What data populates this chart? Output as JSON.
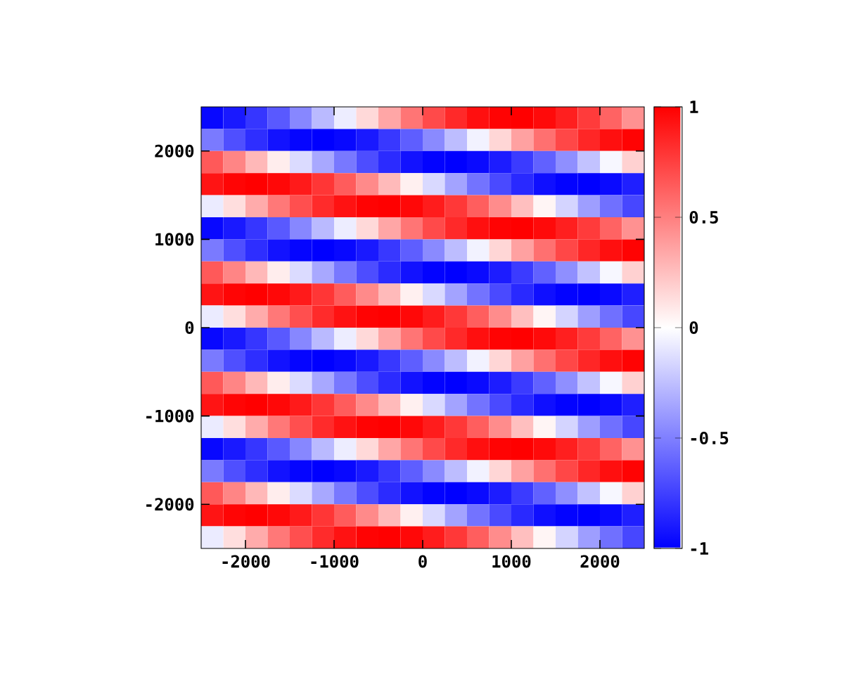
{
  "chart_data": {
    "type": "heatmap",
    "x": [
      -2375,
      -2125,
      -1875,
      -1625,
      -1375,
      -1125,
      -875,
      -625,
      -375,
      -125,
      125,
      375,
      625,
      875,
      1125,
      1375,
      1625,
      1875,
      2125,
      2375
    ],
    "y": [
      2375,
      2125,
      1875,
      1625,
      1375,
      1125,
      875,
      625,
      375,
      125,
      -125,
      -375,
      -625,
      -875,
      -1125,
      -1375,
      -1625,
      -1875,
      -2125,
      -2375
    ],
    "cells": [
      [
        -0.97,
        -0.9,
        -0.79,
        -0.65,
        -0.47,
        -0.27,
        -0.07,
        0.15,
        0.35,
        0.54,
        0.71,
        0.84,
        0.94,
        0.99,
        1.0,
        0.96,
        0.88,
        0.77,
        0.61,
        0.43
      ],
      [
        -0.52,
        -0.69,
        -0.82,
        -0.93,
        -0.98,
        -1.0,
        -0.97,
        -0.9,
        -0.78,
        -0.63,
        -0.46,
        -0.26,
        -0.05,
        0.16,
        0.37,
        0.56,
        0.72,
        0.85,
        0.94,
        0.99
      ],
      [
        0.65,
        0.48,
        0.28,
        0.07,
        -0.14,
        -0.34,
        -0.53,
        -0.7,
        -0.83,
        -0.93,
        -0.99,
        -1.0,
        -0.96,
        -0.89,
        -0.77,
        -0.62,
        -0.44,
        -0.24,
        -0.03,
        0.18
      ],
      [
        0.92,
        0.98,
        1.0,
        0.97,
        0.9,
        0.79,
        0.64,
        0.46,
        0.27,
        0.06,
        -0.15,
        -0.36,
        -0.55,
        -0.71,
        -0.84,
        -0.94,
        -0.99,
        -1.0,
        -0.96,
        -0.88
      ],
      [
        -0.08,
        0.13,
        0.33,
        0.53,
        0.69,
        0.83,
        0.93,
        0.99,
        1.0,
        0.97,
        0.89,
        0.78,
        0.63,
        0.45,
        0.25,
        0.04,
        -0.17,
        -0.38,
        -0.56,
        -0.72
      ],
      [
        -0.97,
        -0.9,
        -0.79,
        -0.65,
        -0.47,
        -0.27,
        -0.07,
        0.15,
        0.35,
        0.54,
        0.71,
        0.84,
        0.94,
        0.99,
        1.0,
        0.96,
        0.88,
        0.77,
        0.61,
        0.43
      ],
      [
        -0.52,
        -0.69,
        -0.82,
        -0.93,
        -0.98,
        -1.0,
        -0.97,
        -0.9,
        -0.78,
        -0.63,
        -0.46,
        -0.26,
        -0.05,
        0.16,
        0.37,
        0.56,
        0.72,
        0.85,
        0.94,
        0.99
      ],
      [
        0.65,
        0.48,
        0.28,
        0.07,
        -0.14,
        -0.34,
        -0.53,
        -0.7,
        -0.83,
        -0.93,
        -0.99,
        -1.0,
        -0.96,
        -0.89,
        -0.77,
        -0.62,
        -0.44,
        -0.24,
        -0.03,
        0.18
      ],
      [
        0.92,
        0.98,
        1.0,
        0.97,
        0.9,
        0.79,
        0.64,
        0.46,
        0.27,
        0.06,
        -0.15,
        -0.36,
        -0.55,
        -0.71,
        -0.84,
        -0.94,
        -0.99,
        -1.0,
        -0.96,
        -0.88
      ],
      [
        -0.08,
        0.13,
        0.33,
        0.53,
        0.69,
        0.83,
        0.93,
        0.99,
        1.0,
        0.97,
        0.89,
        0.78,
        0.63,
        0.45,
        0.25,
        0.04,
        -0.17,
        -0.38,
        -0.56,
        -0.72
      ],
      [
        -0.97,
        -0.9,
        -0.79,
        -0.65,
        -0.47,
        -0.27,
        -0.07,
        0.15,
        0.35,
        0.54,
        0.71,
        0.84,
        0.94,
        0.99,
        1.0,
        0.96,
        0.88,
        0.77,
        0.61,
        0.43
      ],
      [
        -0.52,
        -0.69,
        -0.82,
        -0.93,
        -0.98,
        -1.0,
        -0.97,
        -0.9,
        -0.78,
        -0.63,
        -0.46,
        -0.26,
        -0.05,
        0.16,
        0.37,
        0.56,
        0.72,
        0.85,
        0.94,
        0.99
      ],
      [
        0.65,
        0.48,
        0.28,
        0.07,
        -0.14,
        -0.34,
        -0.53,
        -0.7,
        -0.83,
        -0.93,
        -0.99,
        -1.0,
        -0.96,
        -0.89,
        -0.77,
        -0.62,
        -0.44,
        -0.24,
        -0.03,
        0.18
      ],
      [
        0.92,
        0.98,
        1.0,
        0.97,
        0.9,
        0.79,
        0.64,
        0.46,
        0.27,
        0.06,
        -0.15,
        -0.36,
        -0.55,
        -0.71,
        -0.84,
        -0.94,
        -0.99,
        -1.0,
        -0.96,
        -0.88
      ],
      [
        -0.08,
        0.13,
        0.33,
        0.53,
        0.69,
        0.83,
        0.93,
        0.99,
        1.0,
        0.97,
        0.89,
        0.78,
        0.63,
        0.45,
        0.25,
        0.04,
        -0.17,
        -0.38,
        -0.56,
        -0.72
      ],
      [
        -0.97,
        -0.9,
        -0.79,
        -0.65,
        -0.47,
        -0.27,
        -0.07,
        0.15,
        0.35,
        0.54,
        0.71,
        0.84,
        0.94,
        0.99,
        1.0,
        0.96,
        0.88,
        0.77,
        0.61,
        0.43
      ],
      [
        -0.52,
        -0.69,
        -0.82,
        -0.93,
        -0.98,
        -1.0,
        -0.97,
        -0.9,
        -0.78,
        -0.63,
        -0.46,
        -0.26,
        -0.05,
        0.16,
        0.37,
        0.56,
        0.72,
        0.85,
        0.94,
        0.99
      ],
      [
        0.65,
        0.48,
        0.28,
        0.07,
        -0.14,
        -0.34,
        -0.53,
        -0.7,
        -0.83,
        -0.93,
        -0.99,
        -1.0,
        -0.96,
        -0.89,
        -0.77,
        -0.62,
        -0.44,
        -0.24,
        -0.03,
        0.18
      ],
      [
        0.92,
        0.98,
        1.0,
        0.97,
        0.9,
        0.79,
        0.64,
        0.46,
        0.27,
        0.06,
        -0.15,
        -0.36,
        -0.55,
        -0.71,
        -0.84,
        -0.94,
        -0.99,
        -1.0,
        -0.96,
        -0.88
      ],
      [
        -0.08,
        0.13,
        0.33,
        0.53,
        0.69,
        0.83,
        0.93,
        0.99,
        1.0,
        0.97,
        0.89,
        0.78,
        0.63,
        0.45,
        0.25,
        0.04,
        -0.17,
        -0.38,
        -0.56,
        -0.72
      ]
    ],
    "colors": [
      "#0000ff",
      "#ffffff",
      "#ff0000"
    ],
    "clim": [
      -1,
      1
    ],
    "cticks": [
      -1,
      -0.5,
      0,
      0.5,
      1
    ],
    "xlim": [
      -2500,
      2500
    ],
    "ylim": [
      -2500,
      2500
    ],
    "xticks": [
      -2000,
      -1000,
      0,
      1000,
      2000
    ],
    "yticks": [
      -2000,
      -1000,
      0,
      1000,
      2000
    ]
  }
}
